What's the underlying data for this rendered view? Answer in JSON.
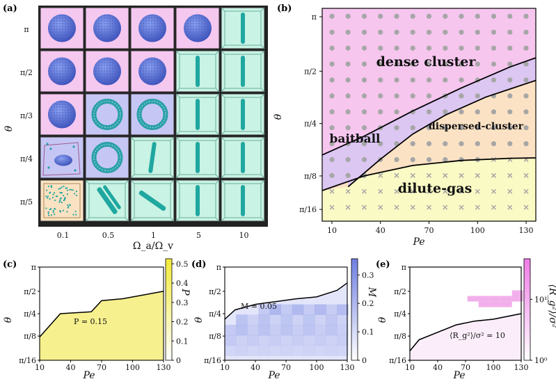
{
  "panel_labels": [
    "(a)",
    "(b)",
    "(c)",
    "(d)",
    "(e)"
  ],
  "chart_data": [
    {
      "panel": "(a)",
      "type": "table",
      "xlabel": "Ω_a/Ω_v",
      "ylabel": "θ",
      "columns": [
        "0.1",
        "0.5",
        "1",
        "5",
        "10"
      ],
      "rows": [
        "π",
        "π/2",
        "π/3",
        "π/4",
        "π/5"
      ],
      "cells": [
        [
          "dense",
          "dense",
          "dense",
          "dense",
          "band"
        ],
        [
          "dense",
          "dense",
          "dense",
          "band",
          "band"
        ],
        [
          "dense",
          "ring",
          "ring",
          "band",
          "band"
        ],
        [
          "baitball",
          "ring",
          "band",
          "band",
          "band"
        ],
        [
          "gas",
          "band",
          "band",
          "band",
          "band"
        ]
      ],
      "phase_colors": {
        "dense": "#f5c8f0",
        "ring": "#c6c6f5",
        "baitball": "#c6c6f5",
        "band": "#c9f3e4",
        "gas": "#fbe2c2"
      }
    },
    {
      "panel": "(b)",
      "type": "scatter",
      "xlabel": "Pe",
      "ylabel": "θ",
      "x_ticks": [
        "10",
        "40",
        "70",
        "100",
        "130"
      ],
      "y_ticks": [
        "π",
        "π/2",
        "π/4",
        "π/8",
        "π/16"
      ],
      "regions": [
        "dense cluster",
        "baitball",
        "dispersed-cluster",
        "dilute-gas"
      ],
      "region_colors": {
        "dense cluster": "#f6c6ef",
        "baitball": "#dcc6f2",
        "dispersed-cluster": "#fce2c4",
        "dilute-gas": "#fafac5"
      }
    },
    {
      "panel": "(c)",
      "type": "heatmap",
      "xlabel": "Pe",
      "ylabel": "θ",
      "colorbar_label": "P",
      "x_ticks": [
        "10",
        "40",
        "70",
        "100",
        "130"
      ],
      "y_ticks": [
        "π",
        "π/2",
        "π/4",
        "π/8",
        "π/16"
      ],
      "cbar_ticks": [
        "0",
        "0.1",
        "0.2",
        "0.3",
        "0.4",
        "0.5"
      ],
      "annotation": "P = 0.15"
    },
    {
      "panel": "(d)",
      "type": "heatmap",
      "xlabel": "Pe",
      "ylabel": "θ",
      "colorbar_label": "M",
      "x_ticks": [
        "10",
        "40",
        "70",
        "100",
        "130"
      ],
      "y_ticks": [
        "π",
        "π/2",
        "π/4",
        "π/8",
        "π/16"
      ],
      "cbar_ticks": [
        "0",
        "0.1",
        "0.2",
        "0.3"
      ],
      "annotation": "M = 0.05"
    },
    {
      "panel": "(e)",
      "type": "heatmap",
      "xlabel": "Pe",
      "ylabel": "θ",
      "colorbar_label": "⟨R_g²⟩/σ²",
      "x_ticks": [
        "10",
        "40",
        "70",
        "100",
        "130"
      ],
      "y_ticks": [
        "π",
        "π/2",
        "π/4",
        "π/8",
        "π/16"
      ],
      "cbar_ticks": [
        "10⁰",
        "10¹"
      ],
      "annotation": "⟨R_g²⟩/σ² = 10"
    }
  ]
}
